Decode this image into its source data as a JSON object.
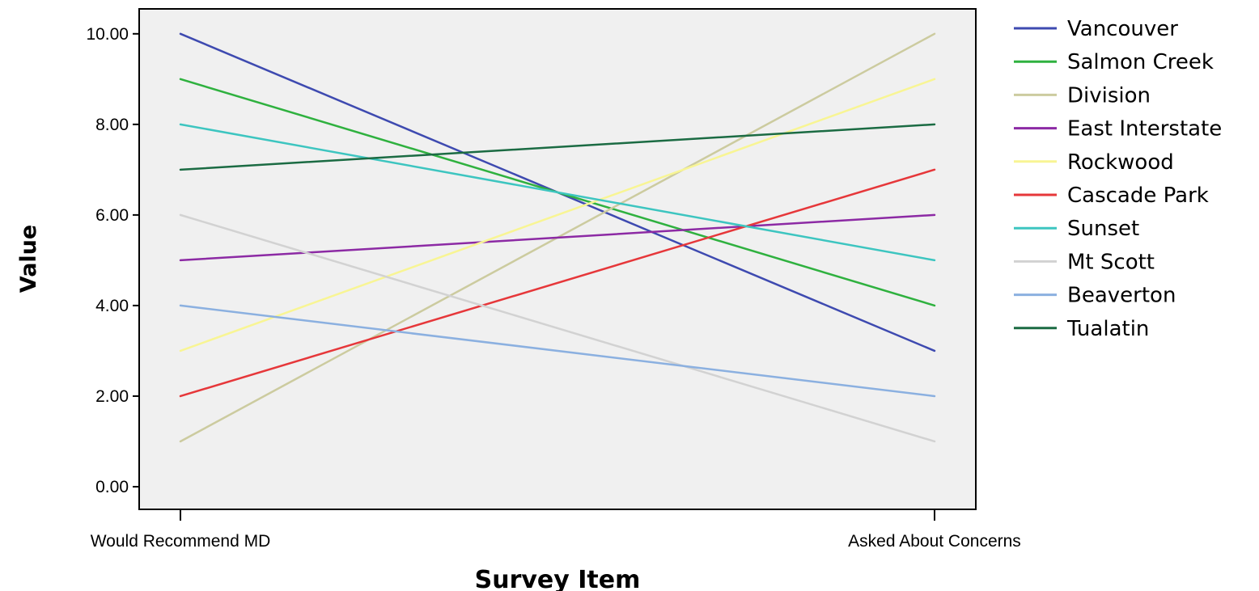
{
  "chart_data": {
    "type": "line",
    "title": "",
    "xlabel": "Survey Item",
    "ylabel": "Value",
    "categories": [
      "Would Recommend MD",
      "Asked About Concerns"
    ],
    "ylim": [
      -0.5,
      10.55
    ],
    "yticks": [
      "0.00",
      "2.00",
      "4.00",
      "6.00",
      "8.00",
      "10.00"
    ],
    "grid": false,
    "legend_position": "right",
    "plot_background": "#f0f0f0",
    "series": [
      {
        "name": "Vancouver",
        "values": [
          10,
          3
        ],
        "color": "#3e4ab0"
      },
      {
        "name": "Salmon Creek",
        "values": [
          9,
          4
        ],
        "color": "#2fb13f"
      },
      {
        "name": "Division",
        "values": [
          1,
          10
        ],
        "color": "#cccb9f"
      },
      {
        "name": "East Interstate",
        "values": [
          5,
          6
        ],
        "color": "#8c2aa4"
      },
      {
        "name": "Rockwood",
        "values": [
          3,
          9
        ],
        "color": "#f8f594"
      },
      {
        "name": "Cascade Park",
        "values": [
          2,
          7
        ],
        "color": "#e6373a"
      },
      {
        "name": "Sunset",
        "values": [
          8,
          5
        ],
        "color": "#3dc5c0"
      },
      {
        "name": "Mt Scott",
        "values": [
          6,
          1
        ],
        "color": "#d2d2d2"
      },
      {
        "name": "Beaverton",
        "values": [
          4,
          2
        ],
        "color": "#8bb0e0"
      },
      {
        "name": "Tualatin",
        "values": [
          7,
          8
        ],
        "color": "#1b6b43"
      }
    ]
  }
}
